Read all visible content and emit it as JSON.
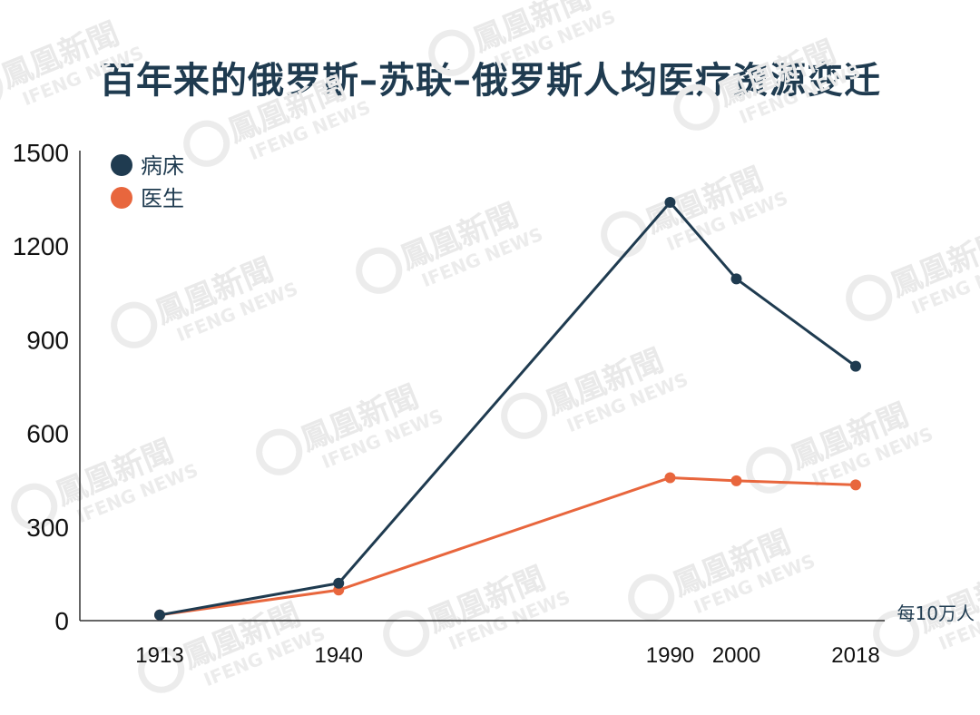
{
  "title": "百年来的俄罗斯–苏联–俄罗斯人均医疗资源变迁",
  "watermark": {
    "name": "鳳凰新聞",
    "sub": "IFENG NEWS"
  },
  "chart_data": {
    "type": "line",
    "x": [
      1913,
      1940,
      1990,
      2000,
      2018
    ],
    "xlim": [
      1900,
      2025
    ],
    "ylim": [
      0,
      1500
    ],
    "yticks": [
      0,
      300,
      600,
      900,
      1200,
      1500
    ],
    "unit": "每10万人",
    "legend_position": "top-left",
    "series": [
      {
        "name": "病床",
        "color": "#1f3b50",
        "values": [
          18,
          120,
          1340,
          1095,
          815
        ]
      },
      {
        "name": "医生",
        "color": "#e8663d",
        "values": [
          18,
          98,
          458,
          448,
          435
        ]
      }
    ]
  }
}
